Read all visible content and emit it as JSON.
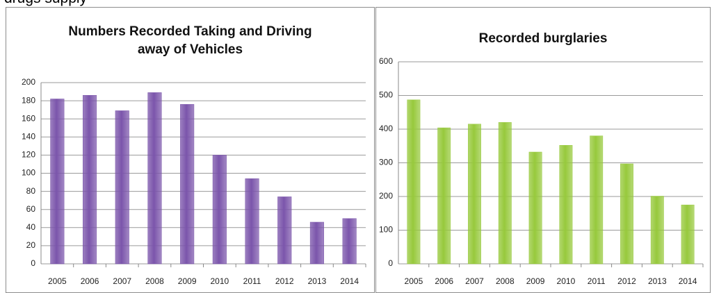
{
  "caption": "drugs supply",
  "chart_data": [
    {
      "type": "bar",
      "title": "Numbers Recorded Taking and Driving away of Vehicles",
      "categories": [
        "2005",
        "2006",
        "2007",
        "2008",
        "2009",
        "2010",
        "2011",
        "2012",
        "2013",
        "2014"
      ],
      "values": [
        182,
        186,
        169,
        189,
        176,
        120,
        94,
        74,
        46,
        50
      ],
      "color": "#7b55ab",
      "ylim": [
        0,
        200
      ],
      "yticks": [
        0,
        20,
        40,
        60,
        80,
        100,
        120,
        140,
        160,
        180,
        200
      ],
      "grid": true
    },
    {
      "type": "bar",
      "title": "Recorded burglaries",
      "categories": [
        "2005",
        "2006",
        "2007",
        "2008",
        "2009",
        "2010",
        "2011",
        "2012",
        "2013",
        "2014"
      ],
      "values": [
        487,
        404,
        415,
        420,
        332,
        352,
        380,
        297,
        201,
        175
      ],
      "color": "#97c93c",
      "ylim": [
        0,
        600
      ],
      "yticks": [
        0,
        100,
        200,
        300,
        400,
        500,
        600
      ],
      "grid": true
    }
  ]
}
